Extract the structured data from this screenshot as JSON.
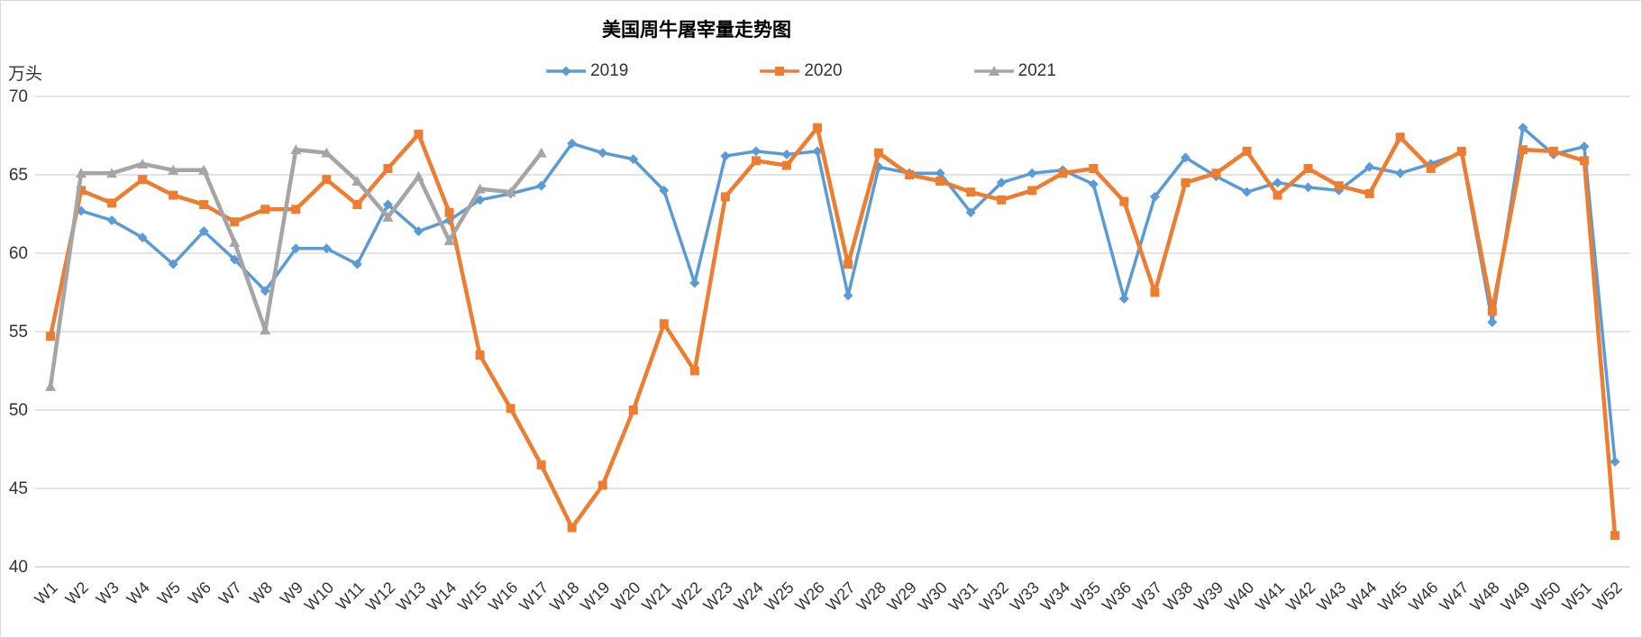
{
  "title": "美国周牛屠宰量走势图",
  "y_axis_unit": "万头",
  "legend": {
    "entries": [
      "2019",
      "2020",
      "2021"
    ]
  },
  "chart_data": {
    "type": "line",
    "title": "美国周牛屠宰量走势图",
    "xlabel": "",
    "ylabel": "万头",
    "ylim": [
      40,
      70
    ],
    "yticks": [
      70,
      65,
      60,
      55,
      50,
      45,
      40
    ],
    "grid": true,
    "legend_position": "top",
    "categories": [
      "W1",
      "W2",
      "W3",
      "W4",
      "W5",
      "W6",
      "W7",
      "W8",
      "W9",
      "W10",
      "W11",
      "W12",
      "W13",
      "W14",
      "W15",
      "W16",
      "W17",
      "W18",
      "W19",
      "W20",
      "W21",
      "W22",
      "W23",
      "W24",
      "W25",
      "W26",
      "W27",
      "W28",
      "W29",
      "W30",
      "W31",
      "W32",
      "W33",
      "W34",
      "W35",
      "W36",
      "W37",
      "W38",
      "W39",
      "W40",
      "W41",
      "W42",
      "W43",
      "W44",
      "W45",
      "W46",
      "W47",
      "W48",
      "W49",
      "W50",
      "W51",
      "W52"
    ],
    "series": [
      {
        "name": "2019",
        "color": "#5B9BD5",
        "marker": "diamond",
        "values": [
          null,
          62.7,
          62.1,
          61.0,
          59.3,
          61.4,
          59.6,
          57.6,
          60.3,
          60.3,
          59.3,
          63.1,
          61.4,
          62.1,
          63.4,
          63.8,
          64.3,
          67.0,
          66.4,
          66.0,
          64.0,
          58.1,
          66.2,
          66.5,
          66.3,
          66.5,
          57.3,
          65.5,
          65.1,
          65.1,
          62.6,
          64.5,
          65.1,
          65.3,
          64.4,
          57.1,
          63.6,
          66.1,
          64.9,
          63.9,
          64.5,
          64.2,
          64.0,
          65.5,
          65.1,
          65.7,
          66.4,
          55.6,
          68.0,
          66.3,
          66.8,
          46.7
        ]
      },
      {
        "name": "2020",
        "color": "#ED7D31",
        "marker": "square",
        "values": [
          54.7,
          64.0,
          63.2,
          64.7,
          63.7,
          63.1,
          62.0,
          62.8,
          62.8,
          64.7,
          63.1,
          65.4,
          67.6,
          62.6,
          53.5,
          50.1,
          46.5,
          42.5,
          45.2,
          50.0,
          55.5,
          52.5,
          63.6,
          65.9,
          65.6,
          68.0,
          59.3,
          66.4,
          65.0,
          64.6,
          63.9,
          63.4,
          64.0,
          65.1,
          65.4,
          63.3,
          57.5,
          64.5,
          65.1,
          66.5,
          63.7,
          65.4,
          64.3,
          63.8,
          67.4,
          65.4,
          66.5,
          56.3,
          66.6,
          66.5,
          65.9,
          42.0
        ]
      },
      {
        "name": "2021",
        "color": "#A5A5A5",
        "marker": "triangle",
        "values": [
          51.5,
          65.1,
          65.1,
          65.7,
          65.3,
          65.3,
          60.7,
          55.1,
          66.6,
          66.4,
          64.6,
          62.3,
          64.9,
          60.8,
          64.1,
          63.9,
          66.4,
          null,
          null,
          null,
          null,
          null,
          null,
          null,
          null,
          null,
          null,
          null,
          null,
          null,
          null,
          null,
          null,
          null,
          null,
          null,
          null,
          null,
          null,
          null,
          null,
          null,
          null,
          null,
          null,
          null,
          null,
          null,
          null,
          null,
          null,
          null
        ]
      }
    ],
    "colors": {
      "grid": "#C9C9C9",
      "axis": "#BFBFBF",
      "text": "#333333"
    }
  }
}
